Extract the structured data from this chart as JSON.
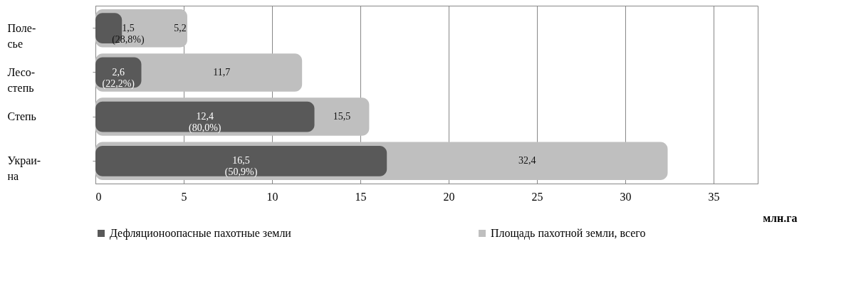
{
  "chart_data": {
    "type": "bar",
    "orientation": "horizontal",
    "categories": [
      "Поле-\nсье",
      "Лесо-\nстепь",
      "Степь",
      "Украи-\nна"
    ],
    "series": [
      {
        "name": "Дефляционоопасные пахотные земли",
        "color": "#595959",
        "values": [
          1.5,
          2.6,
          12.4,
          16.5
        ],
        "value_labels": [
          "1,5\n(28,8%)",
          "2,6\n(22,2%)",
          "12,4\n(80,0%)",
          "16,5\n(50,9%)"
        ]
      },
      {
        "name": "Площадь пахотной земли, всего",
        "color": "#bfbfbf",
        "values": [
          5.2,
          11.7,
          15.5,
          32.4
        ],
        "value_labels": [
          "5,2",
          "11,7",
          "15,5",
          "32,4"
        ]
      }
    ],
    "xlabel": "млн.га",
    "xlim": [
      0,
      37.5
    ],
    "xticks": [
      0,
      5,
      10,
      15,
      20,
      25,
      30,
      35
    ],
    "grid": "x",
    "legend": "bottom"
  }
}
